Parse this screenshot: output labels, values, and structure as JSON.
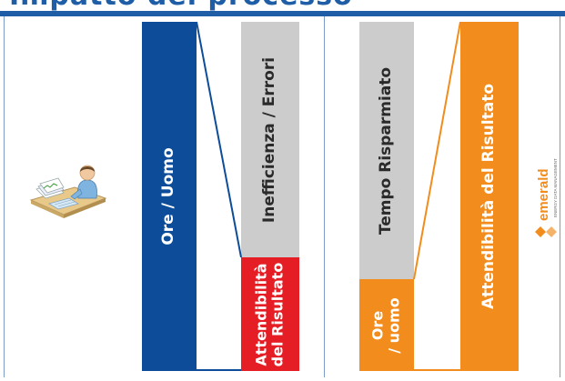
{
  "header": {
    "title": "Impatto del processo"
  },
  "diagram": {
    "left_panel": {
      "bar_total_label": "Ore / Uomo",
      "bar_inefficiency_label": "Inefficienza / Errori",
      "bar_reliability_label_line1": "Attendibilità",
      "bar_reliability_label_line2": "del Risultato"
    },
    "right_panel": {
      "bar_saved_label": "Tempo Risparmiato",
      "bar_hours_label_line1": "Ore",
      "bar_hours_label_line2": "/ uomo",
      "bar_reliability_label": "Attendibilità del Risultato"
    },
    "colors": {
      "blue": "#0d4c99",
      "gray": "#cccccc",
      "red": "#e51e25",
      "orange": "#f28c1c"
    }
  },
  "logo": {
    "brand": "emerald",
    "tagline": "ENERGY DATA MANAGEMENT"
  }
}
